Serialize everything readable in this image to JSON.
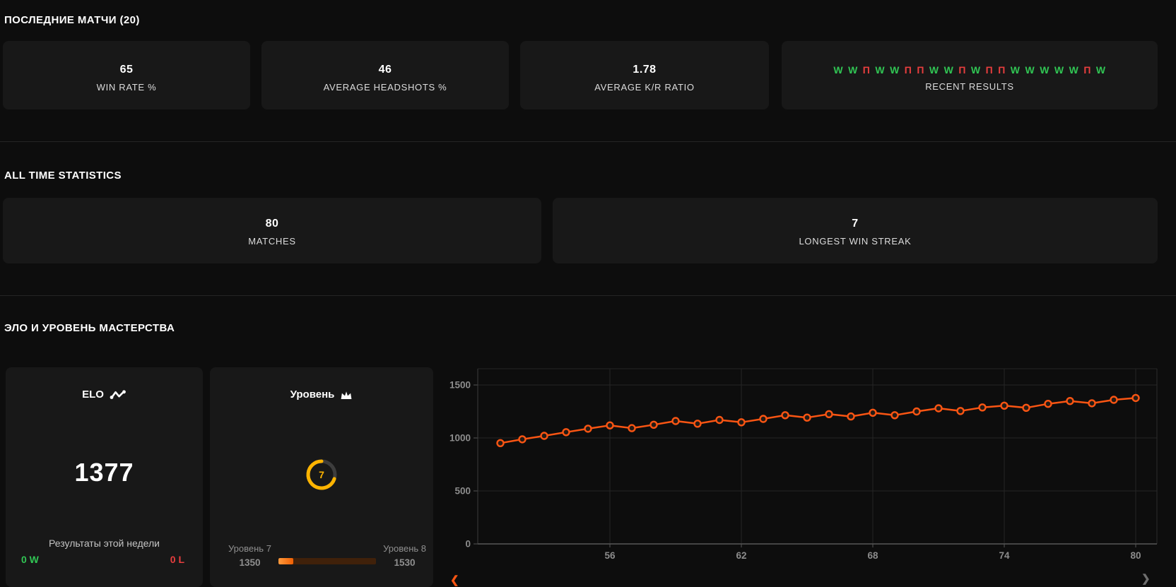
{
  "colors": {
    "accent_orange": "#fa5513",
    "win_green": "#31c554",
    "loss_red": "#e83e3e",
    "gauge_yellow": "#ffb400"
  },
  "recent_section": {
    "title": "ПОСЛЕДНИЕ МАТЧИ (20)",
    "stats": [
      {
        "value": "65",
        "label": "WIN RATE %"
      },
      {
        "value": "46",
        "label": "AVERAGE HEADSHOTS %"
      },
      {
        "value": "1.78",
        "label": "AVERAGE K/R RATIO"
      }
    ],
    "results": {
      "label": "RECENT RESULTS",
      "sequence": [
        "W",
        "W",
        "П",
        "W",
        "W",
        "П",
        "П",
        "W",
        "W",
        "П",
        "W",
        "П",
        "П",
        "W",
        "W",
        "W",
        "W",
        "W",
        "П",
        "W"
      ]
    }
  },
  "alltime_section": {
    "title": "ALL TIME STATISTICS",
    "stats": [
      {
        "value": "80",
        "label": "MATCHES"
      },
      {
        "value": "7",
        "label": "LONGEST WIN STREAK"
      }
    ]
  },
  "elo_section": {
    "title": "ЭЛО И УРОВЕНЬ МАСТЕРСТВА",
    "elo_card": {
      "title": "ELO",
      "value": "1377",
      "week_results_label": "Результаты этой недели",
      "weekly_wins": "0 W",
      "weekly_losses": "0 L"
    },
    "level_card": {
      "title": "Уровень",
      "level": "7",
      "level_max": 10,
      "current_level_label": "Уровень 7",
      "current_level_elo": "1350",
      "next_level_label": "Уровень 8",
      "next_level_elo": "1530",
      "progress_percent": 15
    }
  },
  "chart_data": {
    "type": "line",
    "title": "",
    "xlabel": "",
    "ylabel": "",
    "x": [
      51,
      52,
      53,
      54,
      55,
      56,
      57,
      58,
      59,
      60,
      61,
      62,
      63,
      64,
      65,
      66,
      67,
      68,
      69,
      70,
      71,
      72,
      73,
      74,
      75,
      76,
      77,
      78,
      79,
      80
    ],
    "series": [
      {
        "name": "ELO",
        "values": [
          951,
          987,
          1020,
          1055,
          1087,
          1119,
          1093,
          1125,
          1160,
          1135,
          1170,
          1148,
          1180,
          1215,
          1192,
          1225,
          1203,
          1238,
          1215,
          1250,
          1280,
          1255,
          1288,
          1305,
          1285,
          1322,
          1349,
          1327,
          1360,
          1377
        ]
      }
    ],
    "xticks": [
      56,
      62,
      68,
      74,
      80
    ],
    "yticks": [
      0,
      500,
      1000,
      1500
    ],
    "xlim": [
      49.8,
      81
    ],
    "ylim": [
      0,
      1653
    ],
    "grid": true,
    "legend": false,
    "line_color": "#fa5513",
    "marker": "open-circle",
    "nav_prev": "❮",
    "nav_next": "❯"
  }
}
